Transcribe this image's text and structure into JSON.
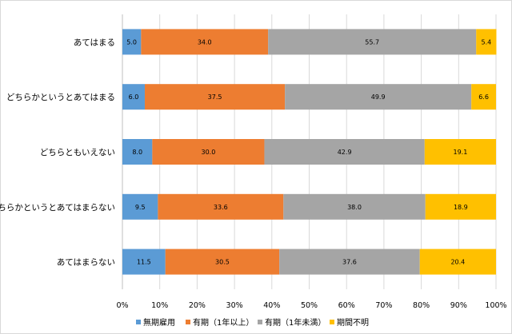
{
  "chart_data": {
    "type": "bar",
    "orientation": "horizontal",
    "stacked": true,
    "percent_stacked": true,
    "categories": [
      "あてはまる",
      "どちらかというとあてはまる",
      "どちらともいえない",
      "どちらかというとあてはまらない",
      "あてはまらない"
    ],
    "series": [
      {
        "name": "無期雇用",
        "color": "#5b9bd5",
        "values": [
          5.0,
          6.0,
          8.0,
          9.5,
          11.5
        ],
        "labels": [
          "5.0",
          "6.0",
          "8.0",
          "9.5",
          "11.5"
        ]
      },
      {
        "name": "有期（1年以上）",
        "color": "#ed7d31",
        "values": [
          34.0,
          37.5,
          30.0,
          33.6,
          30.5
        ],
        "labels": [
          "34.0",
          "37.5",
          "30.0",
          "33.6",
          "30.5"
        ]
      },
      {
        "name": "有期（1年未満）",
        "color": "#a5a5a5",
        "values": [
          55.7,
          49.9,
          42.9,
          38.0,
          37.6
        ],
        "labels": [
          "55.7",
          "49.9",
          "42.9",
          "38.0",
          "37.6"
        ]
      },
      {
        "name": "期間不明",
        "color": "#ffc000",
        "values": [
          5.4,
          6.6,
          19.1,
          18.9,
          20.4
        ],
        "labels": [
          "5.4",
          "6.6",
          "19.1",
          "18.9",
          "20.4"
        ]
      }
    ],
    "x_ticks": [
      "0%",
      "10%",
      "20%",
      "30%",
      "40%",
      "50%",
      "60%",
      "70%",
      "80%",
      "90%",
      "100%"
    ],
    "xlim": [
      0,
      100
    ],
    "grid": true,
    "legend_position": "bottom"
  }
}
